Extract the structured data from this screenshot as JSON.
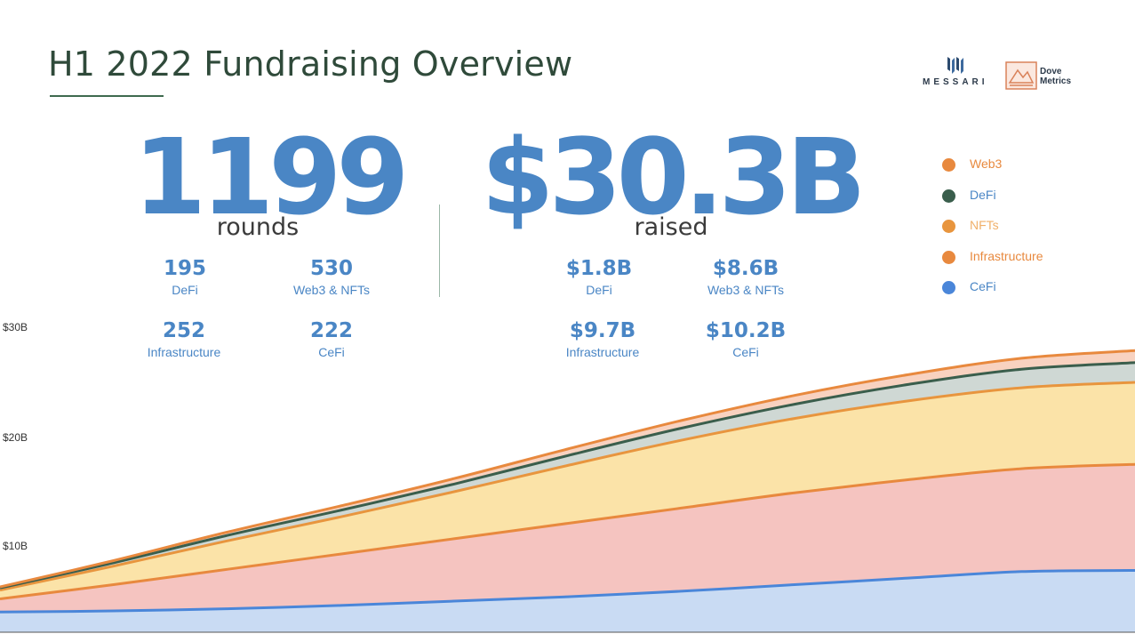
{
  "title": "H1 2022 Fundraising Overview",
  "summary": {
    "rounds": {
      "value": "1199",
      "unit": "rounds"
    },
    "raised": {
      "value": "$30.3B",
      "unit": "raised"
    }
  },
  "rounds_breakdown": [
    {
      "value": "195",
      "label": "DeFi"
    },
    {
      "value": "530",
      "label": "Web3 & NFTs"
    },
    {
      "value": "252",
      "label": "Infrastructure"
    },
    {
      "value": "222",
      "label": "CeFi"
    }
  ],
  "raised_breakdown": [
    {
      "value": "$1.8B",
      "label": "DeFi"
    },
    {
      "value": "$8.6B",
      "label": "Web3 & NFTs"
    },
    {
      "value": "$9.7B",
      "label": "Infrastructure"
    },
    {
      "value": "$10.2B",
      "label": "CeFi"
    }
  ],
  "logos": {
    "messari": "MESSARI",
    "dove_line1": "Dove",
    "dove_line2": "Metrics"
  },
  "chart_data": {
    "type": "area",
    "stacked": true,
    "cumulative": true,
    "y_tick_labels": [
      "$10B",
      "$20B",
      "$30B"
    ],
    "y_ticks": [
      10,
      20,
      30
    ],
    "ylim": [
      4,
      33
    ],
    "x": [
      0,
      0.1,
      0.2,
      0.3,
      0.4,
      0.5,
      0.6,
      0.7,
      0.8,
      0.9,
      1.0
    ],
    "legend_position": "right",
    "series": [
      {
        "name": "CeFi",
        "color": "#4a86d9",
        "fill": "#c9dbf3",
        "values": [
          6.4,
          6.5,
          6.7,
          7.0,
          7.4,
          7.8,
          8.3,
          8.9,
          9.5,
          10.1,
          10.2
        ]
      },
      {
        "name": "Infrastructure",
        "color": "#e8893e",
        "fill": "#f5c4c0",
        "values": [
          1.2,
          2.4,
          3.6,
          4.7,
          5.7,
          6.7,
          7.6,
          8.4,
          9.0,
          9.4,
          9.7
        ]
      },
      {
        "name": "NFTs",
        "color": "#e8953e",
        "fill": "#fbe3a8",
        "values": [
          0.8,
          1.7,
          2.6,
          3.4,
          4.3,
          5.3,
          6.2,
          6.8,
          7.2,
          7.4,
          7.5
        ]
      },
      {
        "name": "DeFi",
        "color": "#3a5e4c",
        "fill": "#cfd8d4",
        "values": [
          0.2,
          0.3,
          0.5,
          0.6,
          0.7,
          0.9,
          1.1,
          1.3,
          1.5,
          1.7,
          1.8
        ]
      },
      {
        "name": "Web3",
        "color": "#e8893e",
        "fill": "#f8d2c0",
        "values": [
          0.1,
          0.2,
          0.3,
          0.4,
          0.5,
          0.6,
          0.7,
          0.8,
          0.9,
          1.0,
          1.1
        ]
      }
    ],
    "legend": [
      {
        "name": "Web3",
        "color": "#e8893e",
        "text_color": "#e8893e"
      },
      {
        "name": "DeFi",
        "color": "#3a5e4c",
        "text_color": "#4a86c5"
      },
      {
        "name": "NFTs",
        "color": "#e8953e",
        "text_color": "#f0b06a"
      },
      {
        "name": "Infrastructure",
        "color": "#e8893e",
        "text_color": "#e8893e"
      },
      {
        "name": "CeFi",
        "color": "#4a86d9",
        "text_color": "#4a86c5"
      }
    ]
  }
}
